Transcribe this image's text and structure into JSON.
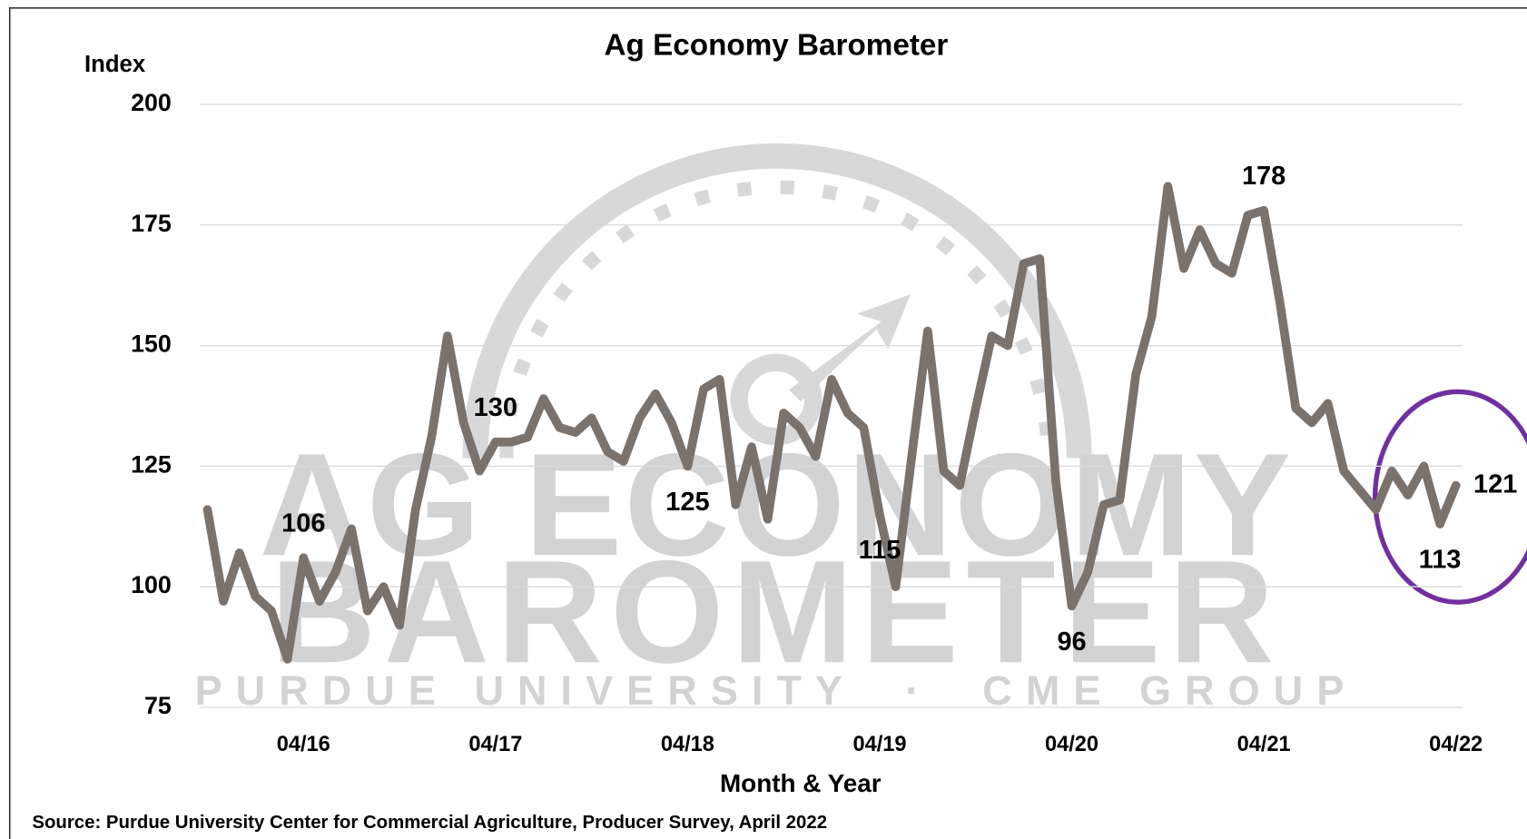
{
  "chart_data": {
    "type": "line",
    "title": "Ag Economy Barometer",
    "y_label": "Index",
    "x_label": "Month & Year",
    "source": "Source: Purdue University Center for Commercial Agriculture, Producer Survey, April 2022",
    "watermark": [
      "AG ECONOMY",
      "BAROMETER",
      "PURDUE UNIVERSITY  ·  CME GROUP"
    ],
    "categories": [
      null,
      null,
      null,
      null,
      null,
      null,
      "04/16",
      null,
      null,
      null,
      null,
      null,
      null,
      null,
      null,
      null,
      null,
      null,
      "04/17",
      null,
      null,
      null,
      null,
      null,
      null,
      null,
      null,
      null,
      null,
      null,
      "04/18",
      null,
      null,
      null,
      null,
      null,
      null,
      null,
      null,
      null,
      null,
      null,
      "04/19",
      null,
      null,
      null,
      null,
      null,
      null,
      null,
      null,
      null,
      null,
      null,
      "04/20",
      null,
      null,
      null,
      null,
      null,
      null,
      null,
      null,
      null,
      null,
      null,
      "04/21",
      null,
      null,
      null,
      null,
      null,
      null,
      null,
      null,
      null,
      null,
      null,
      "04/22"
    ],
    "series": [
      {
        "name": "Index",
        "color": "#7a726d",
        "values": [
          116,
          97,
          107,
          98,
          95,
          85,
          106,
          97,
          103,
          112,
          95,
          100,
          92,
          116,
          131,
          152,
          134,
          124,
          130,
          130,
          131,
          139,
          133,
          132,
          135,
          128,
          126,
          135,
          140,
          134,
          125,
          141,
          143,
          117,
          129,
          114,
          136,
          133,
          127,
          143,
          136,
          133,
          115,
          100,
          127,
          153,
          124,
          121,
          137,
          152,
          150,
          167,
          168,
          122,
          96,
          103,
          117,
          118,
          144,
          156,
          183,
          166,
          174,
          167,
          165,
          177,
          178,
          159,
          137,
          134,
          138,
          124,
          120,
          116,
          124,
          119,
          125,
          113,
          121
        ],
        "value_labels": [
          null,
          null,
          null,
          null,
          null,
          null,
          "106",
          null,
          null,
          null,
          null,
          null,
          null,
          null,
          null,
          null,
          null,
          null,
          "130",
          null,
          null,
          null,
          null,
          null,
          null,
          null,
          null,
          null,
          null,
          null,
          "125",
          null,
          null,
          null,
          null,
          null,
          null,
          null,
          null,
          null,
          null,
          null,
          "115",
          null,
          null,
          null,
          null,
          null,
          null,
          null,
          null,
          null,
          null,
          null,
          "96",
          null,
          null,
          null,
          null,
          null,
          null,
          null,
          null,
          null,
          null,
          null,
          "178",
          null,
          null,
          null,
          null,
          null,
          null,
          null,
          null,
          null,
          null,
          "113",
          "121"
        ]
      }
    ],
    "ylim": [
      75,
      200
    ],
    "yticks": [
      75,
      100,
      125,
      150,
      175,
      200
    ],
    "grid": true
  }
}
